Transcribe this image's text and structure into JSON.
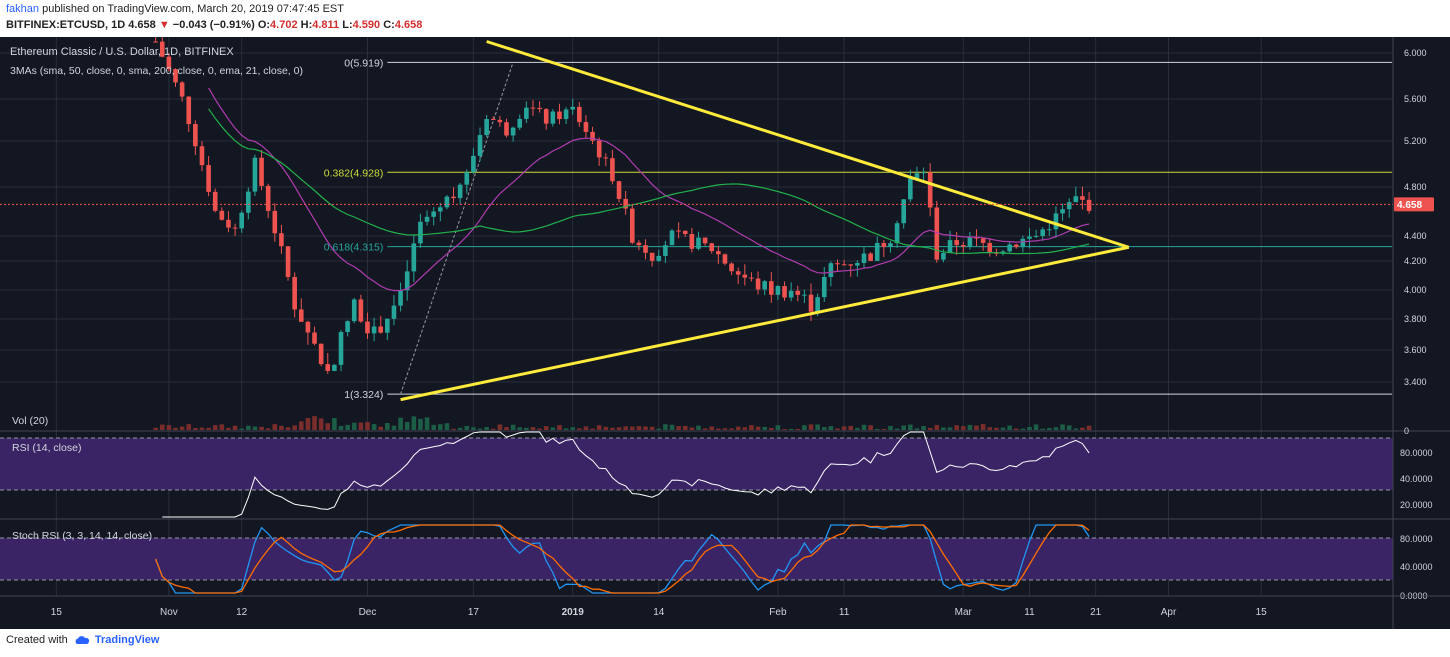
{
  "header": {
    "user": "fakhan",
    "published_text": "published on TradingView.com, March 20, 2019 07:47:45 EST",
    "symbol": "BITFINEX:ETCUSD, 1D",
    "last_price": "4.658",
    "change": "−0.043 (−0.91%)",
    "o_label": "O:",
    "o": "4.702",
    "h_label": "H:",
    "h": "4.811",
    "l_label": "L:",
    "l": "4.590",
    "c_label": "C:",
    "c": "4.658"
  },
  "main_pane": {
    "title": "Ethereum Classic / U.S. Dollar, 1D, BITFINEX",
    "indicator_label": "3MAs (sma, 50, close, 0, sma, 200, close, 0, ema, 21, close, 0)",
    "price_tag": "4.658",
    "price_ticks": [
      "6.000",
      "5.600",
      "5.200",
      "4.800",
      "4.400",
      "4.200",
      "4.000",
      "3.800",
      "3.600",
      "3.400"
    ],
    "fib_levels": [
      {
        "label": "0(5.919)",
        "value": 5.919
      },
      {
        "label": "0.382(4.928)",
        "value": 4.928
      },
      {
        "label": "0.618(4.315)",
        "value": 4.315
      },
      {
        "label": "1(3.324)",
        "value": 3.324
      }
    ]
  },
  "vol_pane": {
    "label": "Vol (20)",
    "tick": "0"
  },
  "rsi_pane": {
    "label": "RSI (14, close)",
    "ticks": [
      "80.0000",
      "40.0000",
      "20.0000"
    ]
  },
  "stoch_pane": {
    "label": "Stoch RSI (3, 3, 14, 14, close)",
    "ticks": [
      "80.0000",
      "40.0000",
      "0.0000"
    ]
  },
  "time_axis": [
    "15",
    "Nov",
    "12",
    "Dec",
    "17",
    "2019",
    "14",
    "Feb",
    "11",
    "Mar",
    "11",
    "21",
    "Apr",
    "15"
  ],
  "footer": {
    "created_with": "Created with",
    "brand": "TradingView"
  },
  "colors": {
    "pane_bg": "#131722",
    "grid": "#2a2e39",
    "up": "#26a69a",
    "down": "#ef5350",
    "trendline": "#ffeb3b",
    "sma50": "#22b14c",
    "ema21": "#b03cb0",
    "rsi_band": "#3a2466",
    "rsi_line": "#ffffff",
    "stoch_k": "#2196f3",
    "stoch_d": "#ff6d00"
  },
  "chart_data": {
    "type": "candlestick",
    "title": "Ethereum Classic / U.S. Dollar, 1D, BITFINEX",
    "last_close": 4.658,
    "y_ticks": [
      3.4,
      3.6,
      3.8,
      4.0,
      4.2,
      4.4,
      4.8,
      5.2,
      5.6,
      6.0
    ],
    "price_path": [
      [
        "2018-10-30",
        6.1
      ],
      [
        "2018-11-03",
        5.6
      ],
      [
        "2018-11-08",
        4.6
      ],
      [
        "2018-11-11",
        4.45
      ],
      [
        "2018-11-14",
        5.0
      ],
      [
        "2018-11-20",
        3.9
      ],
      [
        "2018-11-25",
        3.45
      ],
      [
        "2018-11-29",
        3.9
      ],
      [
        "2018-12-02",
        3.7
      ],
      [
        "2018-12-06",
        3.95
      ],
      [
        "2018-12-09",
        4.5
      ],
      [
        "2018-12-13",
        4.7
      ],
      [
        "2018-12-16",
        4.9
      ],
      [
        "2018-12-19",
        5.45
      ],
      [
        "2018-12-22",
        5.3
      ],
      [
        "2018-12-25",
        5.55
      ],
      [
        "2018-12-28",
        5.4
      ],
      [
        "2019-01-01",
        5.5
      ],
      [
        "2019-01-04",
        5.2
      ],
      [
        "2019-01-07",
        4.9
      ],
      [
        "2019-01-10",
        4.4
      ],
      [
        "2019-01-13",
        4.25
      ],
      [
        "2019-01-16",
        4.4
      ],
      [
        "2019-01-19",
        4.35
      ],
      [
        "2019-01-22",
        4.3
      ],
      [
        "2019-01-25",
        4.15
      ],
      [
        "2019-01-28",
        4.05
      ],
      [
        "2019-01-31",
        4.0
      ],
      [
        "2019-02-03",
        4.0
      ],
      [
        "2019-02-06",
        3.9
      ],
      [
        "2019-02-09",
        4.15
      ],
      [
        "2019-02-12",
        4.2
      ],
      [
        "2019-02-15",
        4.25
      ],
      [
        "2019-02-18",
        4.4
      ],
      [
        "2019-02-21",
        4.85
      ],
      [
        "2019-02-23",
        4.95
      ],
      [
        "2019-02-25",
        4.25
      ],
      [
        "2019-02-28",
        4.35
      ],
      [
        "2019-03-03",
        4.35
      ],
      [
        "2019-03-06",
        4.3
      ],
      [
        "2019-03-09",
        4.35
      ],
      [
        "2019-03-12",
        4.4
      ],
      [
        "2019-03-15",
        4.55
      ],
      [
        "2019-03-18",
        4.7
      ],
      [
        "2019-03-20",
        4.658
      ]
    ],
    "upper_trendline": [
      [
        "2018-12-19",
        6.1
      ],
      [
        "2019-03-26",
        4.31
      ]
    ],
    "lower_trendline": [
      [
        "2018-12-06",
        3.29
      ],
      [
        "2019-03-26",
        4.31
      ]
    ],
    "fibonacci": [
      [
        0,
        5.919
      ],
      [
        0.382,
        4.928
      ],
      [
        0.618,
        4.315
      ],
      [
        1,
        3.324
      ]
    ],
    "rsi_levels": [
      70,
      30
    ]
  }
}
